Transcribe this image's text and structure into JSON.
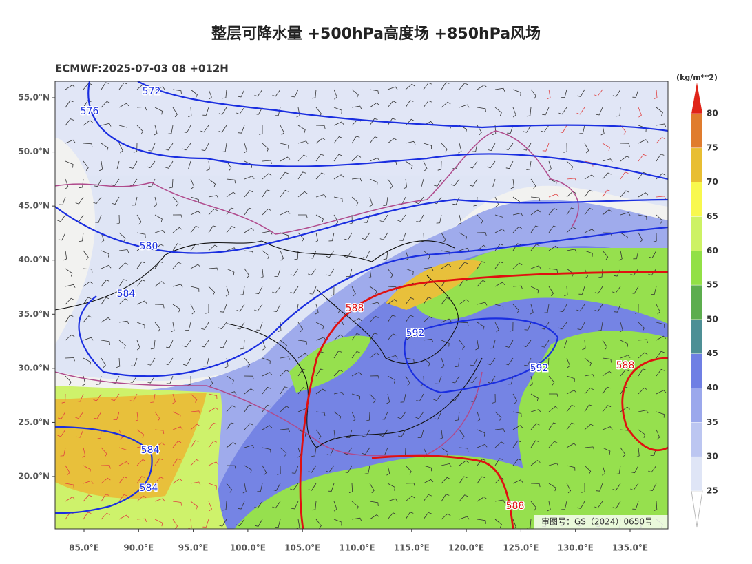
{
  "header": {
    "title": "整层可降水量 +500hPa高度场 +850hPa风场",
    "subtitle": "ECMWF:2025-07-03 08 +012H"
  },
  "map": {
    "lat_ticks": [
      {
        "value": 55,
        "label": "55.0°N"
      },
      {
        "value": 50,
        "label": "50.0°N"
      },
      {
        "value": 45,
        "label": "45.0°N"
      },
      {
        "value": 40,
        "label": "40.0°N"
      },
      {
        "value": 35,
        "label": "35.0°N"
      },
      {
        "value": 30,
        "label": "30.0°N"
      },
      {
        "value": 25,
        "label": "25.0°N"
      },
      {
        "value": 20,
        "label": "20.0°N"
      }
    ],
    "lon_ticks": [
      {
        "value": 85,
        "label": "85.0°E"
      },
      {
        "value": 90,
        "label": "90.0°E"
      },
      {
        "value": 95,
        "label": "95.0°E"
      },
      {
        "value": 100,
        "label": "100.0°E"
      },
      {
        "value": 105,
        "label": "105.0°E"
      },
      {
        "value": 110,
        "label": "110.0°E"
      },
      {
        "value": 115,
        "label": "115.0°E"
      },
      {
        "value": 120,
        "label": "120.0°E"
      },
      {
        "value": 125,
        "label": "125.0°E"
      },
      {
        "value": 130,
        "label": "130.0°E"
      },
      {
        "value": 135,
        "label": "135.0°E"
      }
    ],
    "contour_labels": [
      {
        "value": 572,
        "color": "#1a2ee0"
      },
      {
        "value": 576,
        "color": "#1a2ee0"
      },
      {
        "value": 580,
        "color": "#1a2ee0"
      },
      {
        "value": 584,
        "color": "#1a2ee0"
      },
      {
        "value": 588,
        "color": "#e01010"
      },
      {
        "value": 592,
        "color": "#1a2ee0"
      },
      {
        "value": 592,
        "color": "#1a2ee0"
      },
      {
        "value": 588,
        "color": "#e01010"
      },
      {
        "value": 584,
        "color": "#1a2ee0"
      },
      {
        "value": 584,
        "color": "#1a2ee0"
      },
      {
        "value": 588,
        "color": "#e01010"
      }
    ],
    "approval": "审图号：GS（2024）0650号"
  },
  "colorbar": {
    "unit": "(kg/m**2)",
    "levels": [
      25,
      30,
      35,
      40,
      45,
      50,
      55,
      60,
      65,
      70,
      75,
      80
    ],
    "colors": [
      "#dfe5f6",
      "#bcc6f1",
      "#9ba8ec",
      "#6f7fe4",
      "#4d8f95",
      "#5cad4e",
      "#92e046",
      "#cdf264",
      "#f8f84e",
      "#e8be32",
      "#e07c2e",
      "#e02418"
    ]
  }
}
